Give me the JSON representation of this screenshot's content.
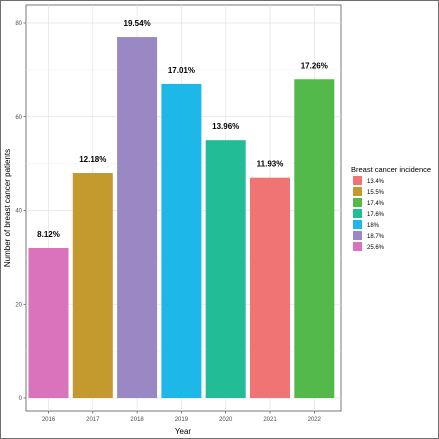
{
  "chart_data": {
    "type": "bar",
    "xlabel": "Year",
    "ylabel": "Number of breast cancer patients",
    "ylim": [
      0,
      84
    ],
    "yticks": [
      0,
      20,
      40,
      60,
      80
    ],
    "grid": true,
    "legend_position": "right",
    "legend_title": "Breast cancer incidence",
    "categories": [
      "2016",
      "2017",
      "2018",
      "2019",
      "2020",
      "2021",
      "2022"
    ],
    "values": [
      32,
      48,
      77,
      67,
      55,
      47,
      68
    ],
    "bar_labels": [
      "8.12%",
      "12.18%",
      "19.54%",
      "17.01%",
      "13.96%",
      "11.93%",
      "17.26%"
    ],
    "bar_colors": [
      "#DB72BC",
      "#C49A2E",
      "#9A88C4",
      "#1DB7E8",
      "#22BC96",
      "#F07474",
      "#52B94A"
    ],
    "legend": [
      {
        "label": "13.4%",
        "color": "#F07474"
      },
      {
        "label": "15.5%",
        "color": "#C49A2E"
      },
      {
        "label": "17.4%",
        "color": "#52B94A"
      },
      {
        "label": "17.6%",
        "color": "#22BC96"
      },
      {
        "label": "18%",
        "color": "#1DB7E8"
      },
      {
        "label": "18.7%",
        "color": "#9A88C4"
      },
      {
        "label": "25.6%",
        "color": "#DB72BC"
      }
    ]
  }
}
